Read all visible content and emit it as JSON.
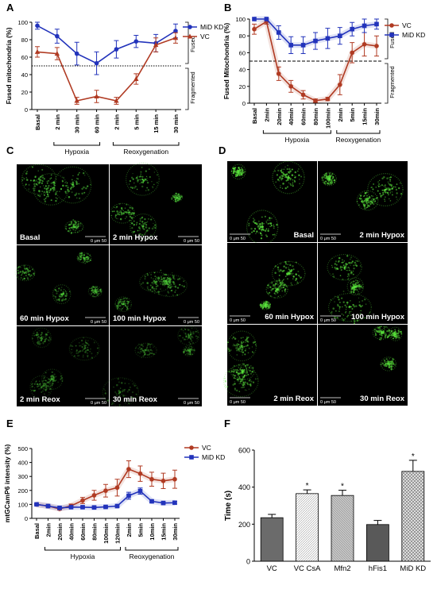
{
  "panels": {
    "A": {
      "letter": "A",
      "chart_data": {
        "type": "line",
        "ylabel": "Fused mitochondria (%)",
        "xlabel": "",
        "ylim": [
          0,
          100
        ],
        "yticks": [
          "0",
          "20",
          "40",
          "60",
          "80",
          "100"
        ],
        "categories": [
          "Basal",
          "2 min",
          "30 min",
          "60 min",
          "2 min",
          "5 min",
          "15 min",
          "30 min"
        ],
        "groups": [
          {
            "label": "Hypoxia",
            "range": [
              1,
              3
            ]
          },
          {
            "label": "Reoxygenation",
            "range": [
              4,
              7
            ]
          }
        ],
        "threshold": 50,
        "zones": {
          "upper": "Fused",
          "lower": "Fragmented"
        },
        "legend_position": "top-right",
        "series": [
          {
            "name": "MiD KD",
            "color": "#2233bb",
            "marker": "circle",
            "values": [
              96,
              84,
              64,
              53,
              69,
              78,
              76,
              90
            ],
            "errors": [
              4,
              8,
              13,
              13,
              10,
              7,
              10,
              8
            ]
          },
          {
            "name": "VC",
            "color": "#b03a22",
            "marker": "triangle",
            "values": [
              66,
              64,
              10,
              15,
              10,
              35,
              74,
              82
            ],
            "errors": [
              6,
              7,
              4,
              7,
              4,
              6,
              8,
              6
            ]
          }
        ]
      }
    },
    "B": {
      "letter": "B",
      "chart_data": {
        "type": "line",
        "ylabel": "Fused Mitochondria (%)",
        "xlabel": "",
        "ylim": [
          0,
          100
        ],
        "yticks": [
          "0",
          "20",
          "40",
          "60",
          "80",
          "100"
        ],
        "categories": [
          "Basal",
          "2min",
          "20min",
          "40min",
          "60min",
          "80min",
          "100min",
          "2min",
          "5min",
          "15min",
          "30min"
        ],
        "groups": [
          {
            "label": "Hypoxia",
            "range": [
              1,
              6
            ]
          },
          {
            "label": "Reoxygenation",
            "range": [
              7,
              10
            ]
          }
        ],
        "threshold": 50,
        "zones": {
          "upper": "Fused",
          "lower": "Fragmented"
        },
        "legend_position": "top-right",
        "series": [
          {
            "name": "VC",
            "color": "#b03a22",
            "marker": "circle",
            "values": [
              88,
              97,
              35,
              20,
              10,
              3,
              5,
              22,
              60,
              70,
              68
            ],
            "errors": [
              6,
              3,
              8,
              7,
              5,
              2,
              2,
              12,
              12,
              14,
              12
            ]
          },
          {
            "name": "MiD KD",
            "color": "#2233bb",
            "marker": "square",
            "values": [
              100,
              100,
              84,
              69,
              69,
              74,
              77,
              80,
              88,
              92,
              94
            ],
            "errors": [
              0,
              0,
              8,
              10,
              10,
              10,
              12,
              10,
              8,
              8,
              6
            ]
          }
        ]
      }
    },
    "C": {
      "letter": "C",
      "tiles": [
        {
          "label": "Basal",
          "scale": "0  μm  50"
        },
        {
          "label": "2 min Hypox",
          "scale": "0  μm  50"
        },
        {
          "label": "60 min Hypox",
          "scale": "0  μm  50"
        },
        {
          "label": "100 min Hypox",
          "scale": "0  μm  50"
        },
        {
          "label": "2 min Reox",
          "scale": "0  μm  50"
        },
        {
          "label": "30 min Reox",
          "scale": "0  μm  50"
        }
      ]
    },
    "D": {
      "letter": "D",
      "tiles": [
        {
          "label": "Basal",
          "scale": "0  μm  50"
        },
        {
          "label": "2 min Hypox",
          "scale": "0  μm  50"
        },
        {
          "label": "60 min Hypox",
          "scale": "0  μm  50"
        },
        {
          "label": "100 min Hypox",
          "scale": "0  μm  50"
        },
        {
          "label": "2 min Reox",
          "scale": "0  μm  50"
        },
        {
          "label": "30 min Reox",
          "scale": "0  μm  50"
        }
      ]
    },
    "E": {
      "letter": "E",
      "chart_data": {
        "type": "line",
        "ylabel": "mtGCamP6 intensity (%)",
        "xlabel": "",
        "ylim": [
          0,
          500
        ],
        "yticks": [
          "0",
          "100",
          "200",
          "300",
          "400",
          "500"
        ],
        "categories": [
          "Basal",
          "2min",
          "20min",
          "40min",
          "60min",
          "80min",
          "100min",
          "120min",
          "2min",
          "5min",
          "10min",
          "15min",
          "30min"
        ],
        "groups": [
          {
            "label": "Hypoxia",
            "range": [
              1,
              7
            ]
          },
          {
            "label": "Reoxygenation",
            "range": [
              8,
              12
            ]
          }
        ],
        "legend_position": "top-right",
        "series": [
          {
            "name": "VC",
            "color": "#b03a22",
            "marker": "circle",
            "values": [
              100,
              88,
              68,
              90,
              128,
              165,
              198,
              220,
              352,
              320,
              280,
              268,
              280
            ],
            "errors": [
              5,
              6,
              8,
              12,
              22,
              35,
              45,
              60,
              60,
              55,
              50,
              55,
              65
            ]
          },
          {
            "name": "MiD KD",
            "color": "#2233bb",
            "marker": "square",
            "values": [
              100,
              88,
              75,
              80,
              80,
              78,
              82,
              88,
              162,
              195,
              122,
              110,
              112
            ],
            "errors": [
              4,
              4,
              4,
              5,
              5,
              5,
              6,
              6,
              25,
              22,
              8,
              8,
              10
            ]
          }
        ]
      }
    },
    "F": {
      "letter": "F",
      "chart_data": {
        "type": "bar",
        "ylabel": "Time (s)",
        "xlabel": "",
        "ylim": [
          0,
          600
        ],
        "yticks": [
          "0",
          "200",
          "400",
          "600"
        ],
        "categories": [
          "VC",
          "VC CsA",
          "Mfn2",
          "hFis1",
          "MiD KD"
        ],
        "values": [
          235,
          365,
          355,
          198,
          485
        ],
        "errors": [
          18,
          20,
          28,
          22,
          60
        ],
        "significance": [
          "",
          "*",
          "*",
          "",
          "*"
        ],
        "fills": [
          "#707070",
          "#e8e8e8",
          "#b9b9b9",
          "#585858",
          "#c9c9c9"
        ]
      }
    }
  }
}
